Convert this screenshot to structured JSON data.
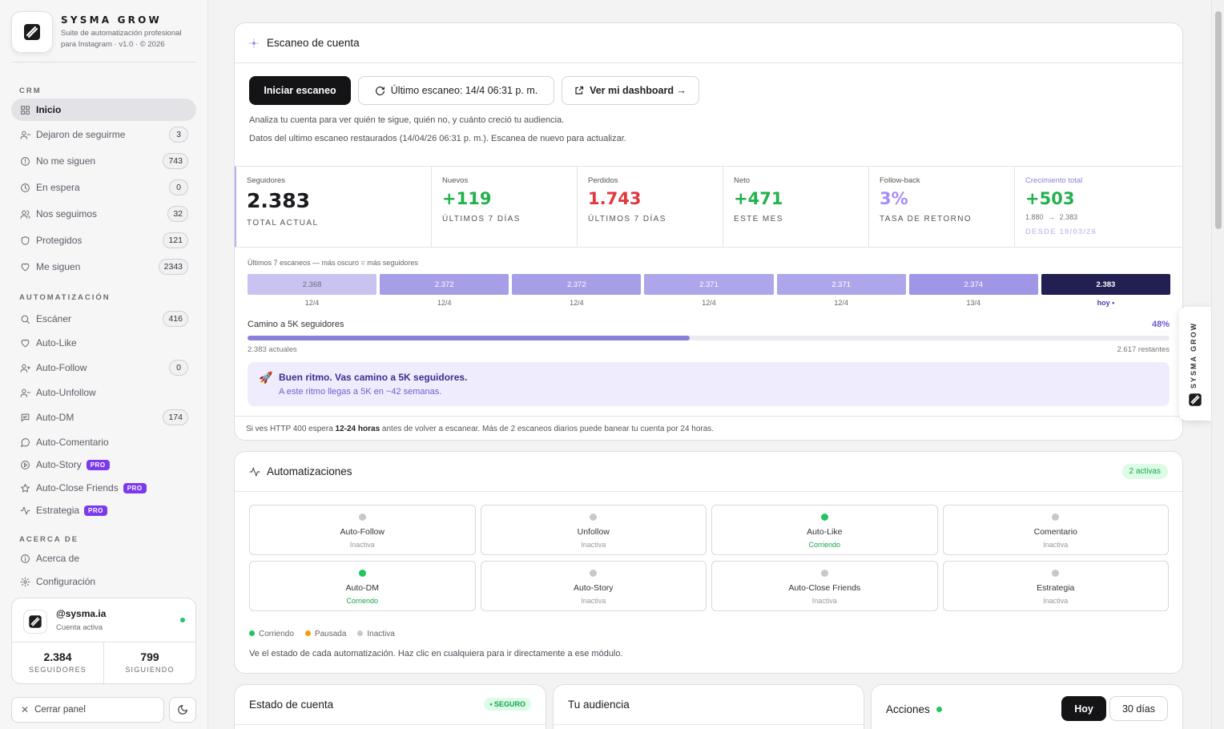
{
  "brand": {
    "name": "SYSMA GROW",
    "subtitle": "Suite de automatización profesional para Instagram · v1.0 · © 2026"
  },
  "sidebar": {
    "sections": {
      "crm": "CRM",
      "automation": "AUTOMATIZACIÓN",
      "about": "ACERCA DE"
    },
    "crm_items": [
      {
        "label": "Inicio",
        "icon": "grid-icon",
        "count": ""
      },
      {
        "label": "Dejaron de seguirme",
        "icon": "user-minus-icon",
        "count": "3"
      },
      {
        "label": "No me siguen",
        "icon": "alert-circle-icon",
        "count": "743"
      },
      {
        "label": "En espera",
        "icon": "clock-icon",
        "count": "0"
      },
      {
        "label": "Nos seguimos",
        "icon": "users-icon",
        "count": "32"
      },
      {
        "label": "Protegidos",
        "icon": "shield-icon",
        "count": "121"
      },
      {
        "label": "Me siguen",
        "icon": "heart-icon",
        "count": "2343"
      }
    ],
    "auto_items": [
      {
        "label": "Escáner",
        "icon": "search-icon",
        "count": "416",
        "pro": ""
      },
      {
        "label": "Auto-Like",
        "icon": "heart-icon",
        "count": "",
        "pro": ""
      },
      {
        "label": "Auto-Follow",
        "icon": "user-plus-icon",
        "count": "0",
        "pro": ""
      },
      {
        "label": "Auto-Unfollow",
        "icon": "user-minus-icon",
        "count": "",
        "pro": ""
      },
      {
        "label": "Auto-DM",
        "icon": "message-square-icon",
        "count": "174",
        "pro": ""
      },
      {
        "label": "Auto-Comentario",
        "icon": "message-circle-icon",
        "count": "",
        "pro": ""
      },
      {
        "label": "Auto-Story",
        "icon": "play-circle-icon",
        "count": "",
        "pro": "PRO"
      },
      {
        "label": "Auto-Close Friends",
        "icon": "star-icon",
        "count": "",
        "pro": "PRO"
      },
      {
        "label": "Estrategia",
        "icon": "activity-icon",
        "count": "",
        "pro": "PRO"
      }
    ],
    "about_items": [
      {
        "label": "Acerca de",
        "icon": "info-icon"
      },
      {
        "label": "Configuración",
        "icon": "gear-icon"
      }
    ],
    "account": {
      "handle": "@sysma.ia",
      "status": "Cuenta activa",
      "followers": "2.384",
      "followers_label": "SEGUIDORES",
      "following": "799",
      "following_label": "SIGUIENDO"
    },
    "close_label": "Cerrar panel"
  },
  "scan": {
    "title": "Escaneo de cuenta",
    "start_button": "Iniciar escaneo",
    "last_scan_button": "Último escaneo: 14/4 06:31 p. m.",
    "dashboard_button": "Ver mi dashboard →",
    "desc1": "Analiza tu cuenta para ver quién te sigue, quién no, y cuánto creció tu audiencia.",
    "desc2": "Datos del ultimo escaneo restaurados (14/04/26 06:31 p. m.). Escanea de nuevo para actualizar.",
    "stats": [
      {
        "label": "Seguidores",
        "value": "2.383",
        "sub": "TOTAL ACTUAL",
        "color": "#1b1b1f"
      },
      {
        "label": "Nuevos",
        "value": "+119",
        "sub": "ÚLTIMOS 7 DÍAS",
        "color": "#22b14c"
      },
      {
        "label": "Perdidos",
        "value": "1.743",
        "sub": "ÚLTIMOS 7 DÍAS",
        "color": "#e0383e"
      },
      {
        "label": "Neto",
        "value": "+471",
        "sub": "ESTE MES",
        "color": "#22b14c"
      },
      {
        "label": "Follow-back",
        "value": "3%",
        "sub": "TASA DE RETORNO",
        "color": "#a78bfa"
      }
    ],
    "growth": {
      "label": "Crecimiento total",
      "value": "+503",
      "range_from": "1.880",
      "range_arrow": "→",
      "range_to": "2.383",
      "since": "DESDE 19/03/26"
    },
    "history_caption": "Últimos 7 escaneos — más oscuro = más seguidores",
    "history": [
      {
        "value": "2.368",
        "date": "12/4",
        "color": "#c9c3f2"
      },
      {
        "value": "2.372",
        "date": "12/4",
        "color": "#a79ee8"
      },
      {
        "value": "2.372",
        "date": "12/4",
        "color": "#a79ee8"
      },
      {
        "value": "2.371",
        "date": "12/4",
        "color": "#aea6ea"
      },
      {
        "value": "2.371",
        "date": "12/4",
        "color": "#aea6ea"
      },
      {
        "value": "2.374",
        "date": "13/4",
        "color": "#a096e6"
      },
      {
        "value": "2.383",
        "date": "hoy •",
        "color": "#221f52"
      }
    ],
    "goal": {
      "label": "Camino a 5K seguidores",
      "percent_label": "48%",
      "progress": 0.48,
      "current": "2.383 actuales",
      "remaining": "2.617 restantes"
    },
    "tip": {
      "title": "Buen ritmo. Vas camino a 5K seguidores.",
      "sub": "A este ritmo llegas a 5K en ~42 semanas."
    },
    "warning": {
      "pre": "Si ves HTTP 400 espera ",
      "bold": "12-24 horas",
      "post": " antes de volver a escanear. Más de 2 escaneos diarios puede banear tu cuenta por 24 horas."
    }
  },
  "automations": {
    "title": "Automatizaciones",
    "badge": "2 activas",
    "items": [
      {
        "name": "Auto-Follow",
        "status": "Inactiva",
        "state": "inactive"
      },
      {
        "name": "Unfollow",
        "status": "Inactiva",
        "state": "inactive"
      },
      {
        "name": "Auto-Like",
        "status": "Corriendo",
        "state": "running"
      },
      {
        "name": "Comentario",
        "status": "Inactiva",
        "state": "inactive"
      },
      {
        "name": "Auto-DM",
        "status": "Corriendo",
        "state": "running"
      },
      {
        "name": "Auto-Story",
        "status": "Inactiva",
        "state": "inactive"
      },
      {
        "name": "Auto-Close Friends",
        "status": "Inactiva",
        "state": "inactive"
      },
      {
        "name": "Estrategia",
        "status": "Inactiva",
        "state": "inactive"
      }
    ],
    "legend": {
      "running": "Corriendo",
      "paused": "Pausada",
      "inactive": "Inactiva"
    },
    "footer": "Ve el estado de cada automatización. Haz clic en cualquiera para ir directamente a ese módulo."
  },
  "bottom": {
    "account_status": {
      "title": "Estado de cuenta",
      "badge": "• SEGURO"
    },
    "audience": {
      "title": "Tu audiencia"
    },
    "actions": {
      "title": "Acciones",
      "tab_today": "Hoy",
      "tab_30": "30 días"
    }
  },
  "side_tab": {
    "label": "SYSMA GROW"
  },
  "colors": {
    "running": "#22c55e",
    "paused": "#f59e0b",
    "inactive": "#c8c8cc",
    "pro": "#7c3aed",
    "accent": "#8b7fdc"
  }
}
